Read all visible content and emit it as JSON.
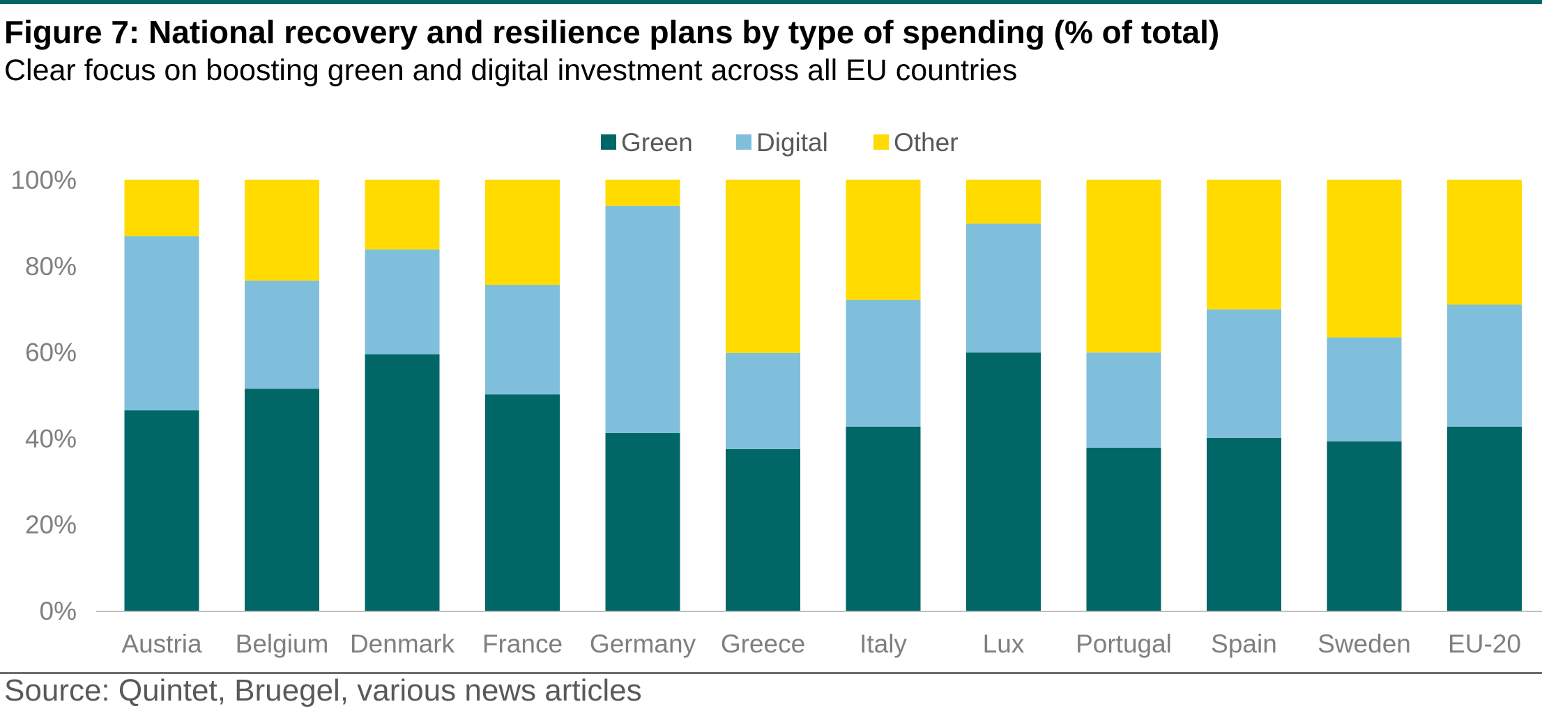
{
  "header": {
    "title": "Figure 7: National recovery and resilience plans by type of spending (% of total)",
    "subtitle": "Clear focus on boosting green and digital investment across all EU countries"
  },
  "footer": {
    "source": "Source: Quintet, Bruegel, various news articles"
  },
  "colors": {
    "Green": "#006666",
    "Digital": "#7fbfdb",
    "Other": "#ffdb00",
    "axis": "#bfbfbf",
    "tick_text": "#7f7f7f",
    "legend_text": "#595959",
    "rule": "#006666"
  },
  "chart_data": {
    "type": "bar",
    "stacked": true,
    "categories": [
      "Austria",
      "Belgium",
      "Denmark",
      "France",
      "Germany",
      "Greece",
      "Italy",
      "Lux",
      "Portugal",
      "Spain",
      "Sweden",
      "EU-20"
    ],
    "series": [
      {
        "name": "Green",
        "values": [
          46.5,
          51.5,
          59.5,
          50.2,
          41.2,
          37.5,
          42.7,
          59.9,
          37.8,
          40.1,
          39.3,
          42.7
        ]
      },
      {
        "name": "Digital",
        "values": [
          40.4,
          25.1,
          24.3,
          25.4,
          52.7,
          22.3,
          29.4,
          29.9,
          22.1,
          29.8,
          24.1,
          28.3
        ]
      },
      {
        "name": "Other",
        "values": [
          13.1,
          23.4,
          16.2,
          24.4,
          6.1,
          40.2,
          27.9,
          10.2,
          40.1,
          30.1,
          36.6,
          29.0
        ]
      }
    ],
    "ylim": [
      0,
      100
    ],
    "yticks": [
      "0%",
      "20%",
      "40%",
      "60%",
      "80%",
      "100%"
    ],
    "legend": "top-center",
    "grid": false
  }
}
